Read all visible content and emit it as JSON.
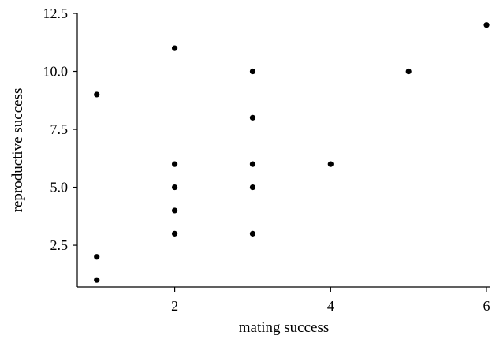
{
  "chart_data": {
    "type": "scatter",
    "title": "",
    "xlabel": "mating success",
    "ylabel": "reproductive success",
    "xlim": [
      0.75,
      6.05
    ],
    "ylim": [
      0.7,
      12.5
    ],
    "x_ticks": [
      2,
      4,
      6
    ],
    "y_ticks": [
      2.5,
      5.0,
      7.5,
      10.0,
      12.5
    ],
    "x_tick_labels": [
      "2",
      "4",
      "6"
    ],
    "y_tick_labels": [
      "2.5",
      "5.0",
      "7.5",
      "10.0",
      "12.5"
    ],
    "grid": false,
    "point_color": "#000000",
    "points": [
      {
        "x": 1,
        "y": 9
      },
      {
        "x": 1,
        "y": 2
      },
      {
        "x": 1,
        "y": 1
      },
      {
        "x": 2,
        "y": 11
      },
      {
        "x": 2,
        "y": 6
      },
      {
        "x": 2,
        "y": 5
      },
      {
        "x": 2,
        "y": 4
      },
      {
        "x": 2,
        "y": 3
      },
      {
        "x": 3,
        "y": 10
      },
      {
        "x": 3,
        "y": 8
      },
      {
        "x": 3,
        "y": 6
      },
      {
        "x": 3,
        "y": 5
      },
      {
        "x": 3,
        "y": 3
      },
      {
        "x": 4,
        "y": 6
      },
      {
        "x": 5,
        "y": 10
      },
      {
        "x": 6,
        "y": 12
      }
    ]
  }
}
